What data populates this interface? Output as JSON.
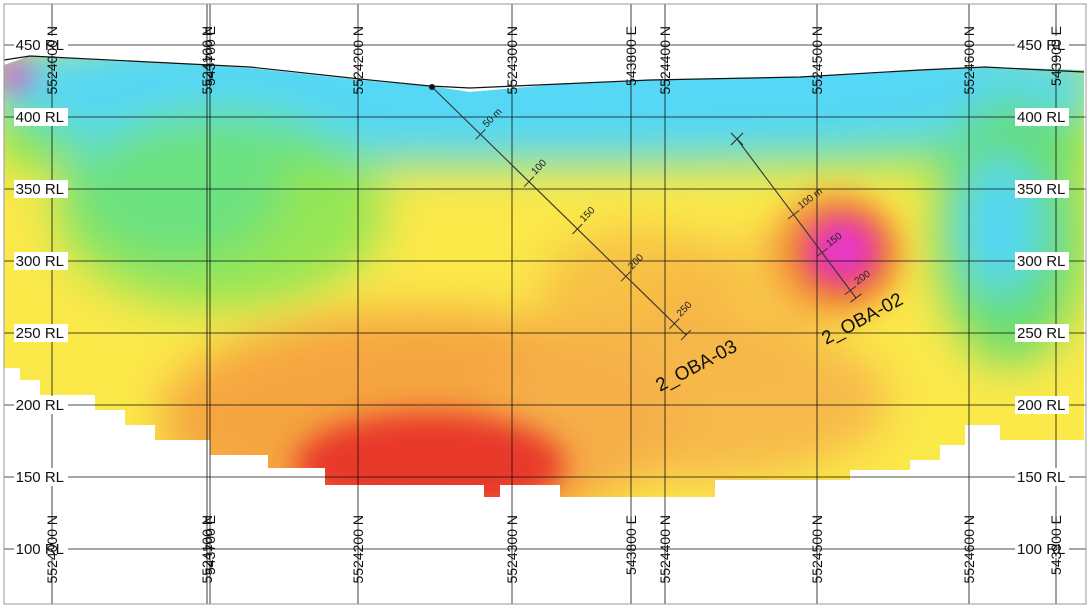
{
  "section": {
    "rl_labels": [
      {
        "value": 450,
        "text": "450 RL"
      },
      {
        "value": 400,
        "text": "400 RL"
      },
      {
        "value": 350,
        "text": "350 RL"
      },
      {
        "value": 300,
        "text": "300 RL"
      },
      {
        "value": 250,
        "text": "250 RL"
      },
      {
        "value": 200,
        "text": "200 RL"
      },
      {
        "value": 150,
        "text": "150 RL"
      },
      {
        "value": 100,
        "text": "100 RL"
      }
    ],
    "northing_labels": [
      {
        "text": "5524000 N"
      },
      {
        "text": "5524100 N"
      },
      {
        "text": "5524200 N"
      },
      {
        "text": "5524300 N"
      },
      {
        "text": "5524400 N"
      },
      {
        "text": "5524500 N"
      },
      {
        "text": "5524600 N"
      }
    ],
    "easting_labels": [
      {
        "text": "543700 E"
      },
      {
        "text": "543800 E"
      },
      {
        "text": "543900 E"
      }
    ],
    "drillholes": [
      {
        "name": "2_OBA-03",
        "depth_ticks": [
          {
            "depth": 50,
            "text": "50 m"
          },
          {
            "depth": 100,
            "text": "100"
          },
          {
            "depth": 150,
            "text": "150"
          },
          {
            "depth": 200,
            "text": "200"
          },
          {
            "depth": 250,
            "text": "250"
          }
        ]
      },
      {
        "name": "2_OBA-02",
        "depth_ticks": [
          {
            "depth": 100,
            "text": "100 m"
          },
          {
            "depth": 150,
            "text": "150"
          },
          {
            "depth": 200,
            "text": "200"
          }
        ]
      }
    ],
    "colors": {
      "very_high": "#e83bd0",
      "high": "#e8372c",
      "mid_high": "#f5a540",
      "mid": "#fbe94a",
      "mid_low": "#7ee852",
      "low": "#55d7f5",
      "grid": "#111111",
      "trace": "#333333"
    }
  }
}
